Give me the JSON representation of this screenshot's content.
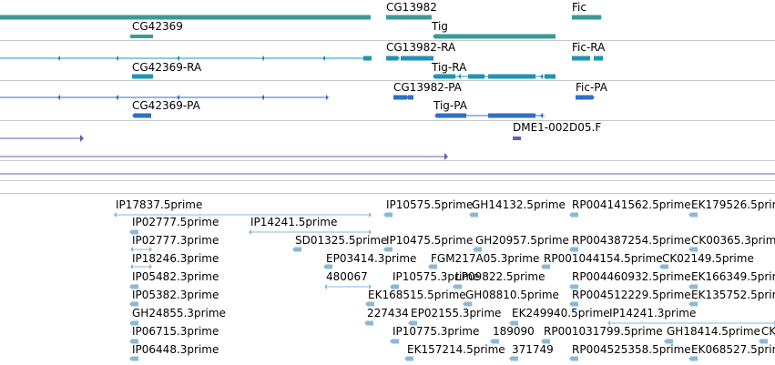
{
  "colors": {
    "gene": "#3a9a9a",
    "transcript_a": "#2094b4",
    "transcript_b": "#2f6fc4",
    "clone": "#7058b0",
    "est": "#8ab8d8",
    "separator": "#c8c8c8"
  },
  "tracks": [
    {
      "track": "genes",
      "labels": [
        "CG13982",
        "Fic",
        "CG42369",
        "Tig"
      ]
    },
    {
      "track": "transcripts-ra",
      "labels": [
        "CG13982-RA",
        "Fic-RA",
        "CG42369-RA",
        "Tig-RA"
      ]
    },
    {
      "track": "proteins-pa",
      "labels": [
        "CG13982-PA",
        "Fic-PA",
        "CG42369-PA",
        "Tig-PA"
      ]
    },
    {
      "track": "clones",
      "labels": [
        "DME1-002D05.F"
      ]
    },
    {
      "track": "est-alignments",
      "labels": [
        "IP17837.5prime",
        "IP10575.5prime",
        "GH14132.5prime",
        "RP004141562.5prime",
        "EK179526.5prime",
        "IP02777.5prime",
        "IP14241.5prime",
        "IP02777.3prime",
        "SD01325.5prime",
        "IP10475.5prime",
        "GH20957.5prime",
        "RP004387254.5prime",
        "CK00365.3prime",
        "IP18246.3prime",
        "EP03414.3prime",
        "FGM217A05.3prime",
        "RP001044154.5prime",
        "CK02149.5prime",
        "IP05482.3prime",
        "480067",
        "IP10575.3prime",
        "LP09822.5prime",
        "RP004460932.5prime",
        "EK166349.5prime",
        "IP05382.3prime",
        "EK168515.5prime",
        "GH08810.5prime",
        "RP004512229.5prime",
        "EK135752.5prime",
        "GH24855.3prime",
        "227434",
        "EP02155.3prime",
        "EK249940.5prime",
        "IP14241.3prime",
        "IP06715.3prime",
        "IP10775.3prime",
        "189090",
        "RP001031799.5prime",
        "GH18414.5prime",
        "CK",
        "IP06448.3prime",
        "EK157214.5prime",
        "371749",
        "RP004525358.5prime",
        "EK068527.5prime"
      ]
    }
  ]
}
